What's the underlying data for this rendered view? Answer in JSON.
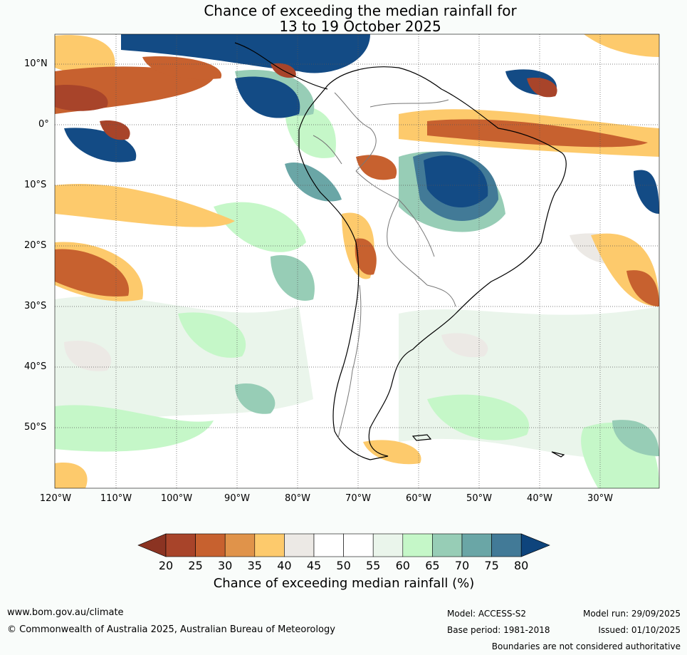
{
  "title": {
    "line1": "Chance of exceeding the median rainfall for",
    "line2": "13 to 19 October 2025"
  },
  "map": {
    "lat_labels": [
      "10°N",
      "0°",
      "10°S",
      "20°S",
      "30°S",
      "40°S",
      "50°S"
    ],
    "lon_labels": [
      "120°W",
      "110°W",
      "100°W",
      "90°W",
      "80°W",
      "70°W",
      "60°W",
      "50°W",
      "40°W",
      "30°W"
    ]
  },
  "colorbar": {
    "ticks": [
      "20",
      "25",
      "30",
      "35",
      "40",
      "45",
      "50",
      "55",
      "60",
      "65",
      "70",
      "75",
      "80"
    ],
    "colors": [
      "#a8442a",
      "#c7612f",
      "#e0934a",
      "#fdca6c",
      "#ece9e5",
      "#ffffff",
      "#ffffff",
      "#eaf5eb",
      "#c5f7c8",
      "#97cdb6",
      "#6aa6a6",
      "#427a97",
      "#134b85"
    ],
    "under_color": "#8b3322",
    "over_color": "#0e447c",
    "label": "Chance of exceeding median rainfall (%)"
  },
  "footer": {
    "website": "www.bom.gov.au/climate",
    "copyright": "© Commonwealth of Australia 2025, Australian Bureau of Meteorology",
    "model": "Model: ACCESS-S2",
    "base_period": "Base period: 1981-2018",
    "model_run": "Model run: 29/09/2025",
    "issued": "Issued: 01/10/2025",
    "disclaimer": "Boundaries are not considered authoritative"
  }
}
